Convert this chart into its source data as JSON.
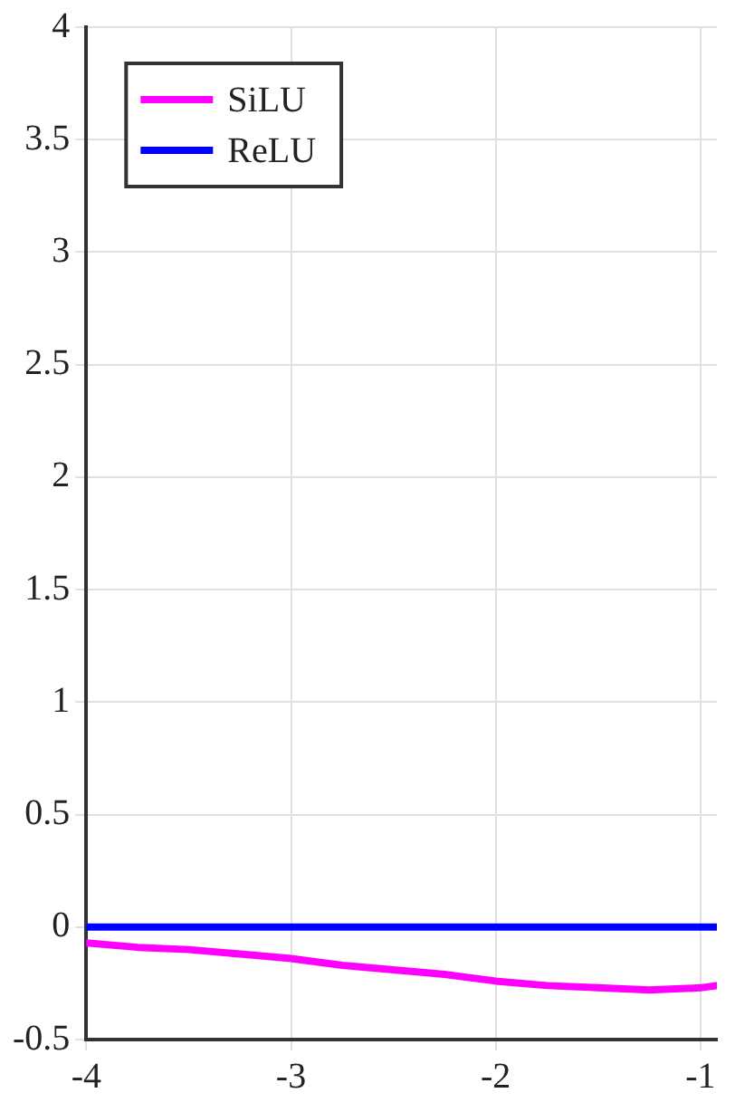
{
  "chart_data": {
    "type": "line",
    "x": [
      -4,
      -3.75,
      -3.5,
      -3.25,
      -3,
      -2.75,
      -2.5,
      -2.25,
      -2,
      -1.75,
      -1.5,
      -1.25,
      -1,
      -0.92
    ],
    "series": [
      {
        "name": "SiLU",
        "color": "#ff00ff",
        "values": [
          -0.07,
          -0.09,
          -0.1,
          -0.12,
          -0.14,
          -0.17,
          -0.19,
          -0.21,
          -0.24,
          -0.26,
          -0.27,
          -0.28,
          -0.27,
          -0.26
        ]
      },
      {
        "name": "ReLU",
        "color": "#0000ff",
        "values": [
          0,
          0,
          0,
          0,
          0,
          0,
          0,
          0,
          0,
          0,
          0,
          0,
          0,
          0
        ]
      }
    ],
    "xlim": [
      -4,
      -0.92
    ],
    "xticks": [
      -4,
      -3,
      -2,
      -1
    ],
    "ylim": [
      -0.5,
      4
    ],
    "yticks": [
      -0.5,
      0,
      0.5,
      1,
      1.5,
      2,
      2.5,
      3,
      3.5,
      4
    ],
    "grid": true,
    "legend": "top left",
    "marker": "none",
    "line_style": "solid"
  }
}
